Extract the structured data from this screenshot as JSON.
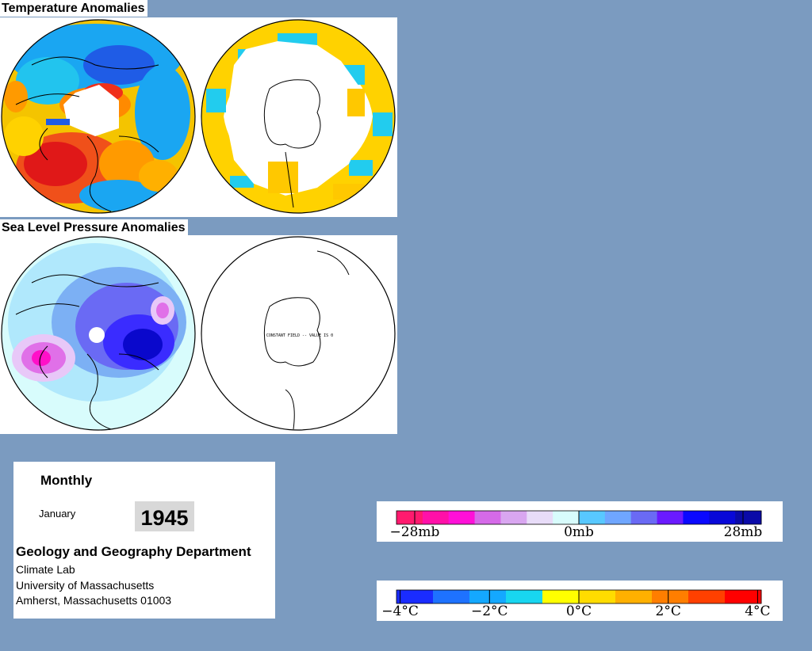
{
  "titles": {
    "temperature": "Temperature Anomalies",
    "pressure": "Sea Level Pressure Anomalies"
  },
  "maps": {
    "pressure_south_note": "CONSTANT FIELD -- VALUE IS 0"
  },
  "info": {
    "period": "Monthly",
    "month": "January",
    "year": "1945",
    "department": "Geology and Geography Department",
    "lab": "Climate Lab",
    "university": "University of Massachusetts",
    "address": "Amherst, Massachusetts 01003"
  },
  "pressure_legend": {
    "labels": [
      "−28mb",
      "0mb",
      "28mb"
    ],
    "colors": [
      "#ff1a6e",
      "#ff10a8",
      "#ff10d8",
      "#d56ae8",
      "#d9a6f0",
      "#e8dcf8",
      "#d8fcfc",
      "#58c8ff",
      "#6fa6ff",
      "#6a6af4",
      "#6a1aff",
      "#0a08ff",
      "#0808d8",
      "#0a0aa8"
    ]
  },
  "temperature_legend": {
    "labels": [
      "−4°C",
      "−2°C",
      "0°C",
      "2°C",
      "4°C"
    ],
    "colors": [
      "#1a2cff",
      "#1e72ff",
      "#14a8ff",
      "#18d6f0",
      "#ffff00",
      "#ffdc00",
      "#ffb000",
      "#ff7e00",
      "#ff4000",
      "#ff0000"
    ]
  }
}
